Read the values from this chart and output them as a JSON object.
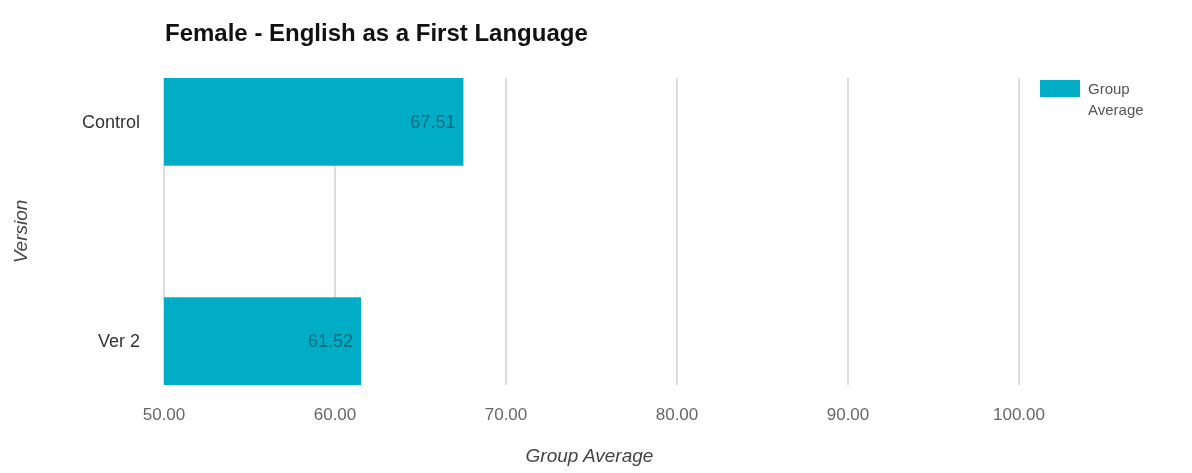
{
  "chart_data": {
    "type": "bar",
    "orientation": "horizontal",
    "title": "Female - English as a First Language",
    "xlabel": "Group Average",
    "ylabel": "Version",
    "categories": [
      "Control",
      "Ver 2"
    ],
    "series": [
      {
        "name": "Group Average",
        "color": "#00acc6",
        "values": [
          67.51,
          61.52
        ]
      }
    ],
    "xlim": [
      50,
      100
    ],
    "xticks": [
      {
        "value": 50,
        "label": "50.00"
      },
      {
        "value": 60,
        "label": "60.00"
      },
      {
        "value": 70,
        "label": "70.00"
      },
      {
        "value": 80,
        "label": "80.00"
      },
      {
        "value": 90,
        "label": "90.00"
      },
      {
        "value": 100,
        "label": "100.00"
      }
    ],
    "grid": "x",
    "legend": "top right",
    "data_labels": true
  }
}
